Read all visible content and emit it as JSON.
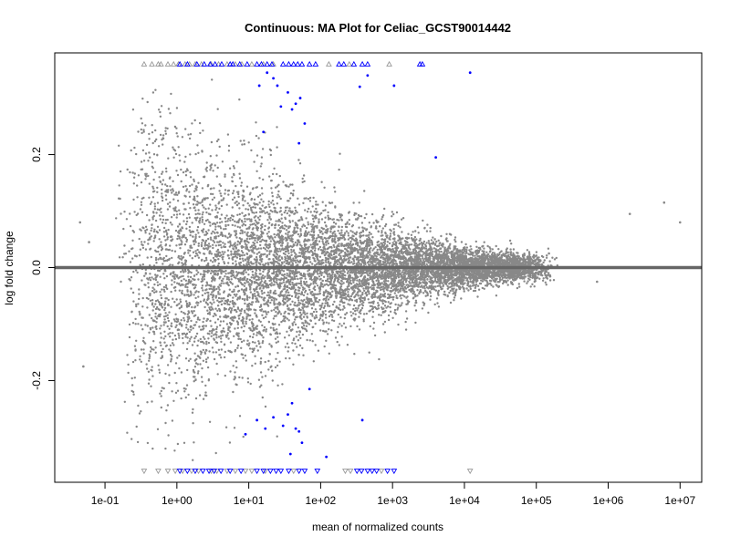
{
  "chart_data": {
    "type": "scatter",
    "title": "Continuous: MA Plot for Celiac_GCST90014442",
    "xlabel": "mean of normalized counts",
    "ylabel": "log fold change",
    "x_scale": "log10",
    "xlim": [
      0.02,
      20000000
    ],
    "ylim": [
      -0.38,
      0.38
    ],
    "x_ticks": [
      {
        "value": 0.1,
        "label": "1e-01"
      },
      {
        "value": 1,
        "label": "1e+00"
      },
      {
        "value": 10,
        "label": "1e+01"
      },
      {
        "value": 100,
        "label": "1e+02"
      },
      {
        "value": 1000,
        "label": "1e+03"
      },
      {
        "value": 10000,
        "label": "1e+04"
      },
      {
        "value": 100000,
        "label": "1e+05"
      },
      {
        "value": 1000000,
        "label": "1e+06"
      },
      {
        "value": 10000000,
        "label": "1e+07"
      }
    ],
    "y_ticks": [
      {
        "value": -0.2,
        "label": "-0.2"
      },
      {
        "value": 0.0,
        "label": "0.0"
      },
      {
        "value": 0.2,
        "label": "0.2"
      }
    ],
    "reference_line": {
      "y": 0,
      "color": "#666666"
    },
    "colors": {
      "non_significant": "#888888",
      "significant": "#0000ff",
      "clipped_nonsig": "#999999"
    },
    "grid": false,
    "legend": "none",
    "significant_points": [
      {
        "x": 14,
        "y": 0.322
      },
      {
        "x": 18,
        "y": 0.345
      },
      {
        "x": 22,
        "y": 0.335
      },
      {
        "x": 25,
        "y": 0.322
      },
      {
        "x": 35,
        "y": 0.31
      },
      {
        "x": 40,
        "y": 0.28
      },
      {
        "x": 45,
        "y": 0.29
      },
      {
        "x": 52,
        "y": 0.3
      },
      {
        "x": 60,
        "y": 0.255
      },
      {
        "x": 28,
        "y": 0.285
      },
      {
        "x": 50,
        "y": 0.22
      },
      {
        "x": 16,
        "y": 0.24
      },
      {
        "x": 350,
        "y": 0.32
      },
      {
        "x": 450,
        "y": 0.34
      },
      {
        "x": 1050,
        "y": 0.322
      },
      {
        "x": 4000,
        "y": 0.195
      },
      {
        "x": 12000,
        "y": 0.345
      },
      {
        "x": 13,
        "y": -0.27
      },
      {
        "x": 17,
        "y": -0.285
      },
      {
        "x": 22,
        "y": -0.265
      },
      {
        "x": 30,
        "y": -0.28
      },
      {
        "x": 35,
        "y": -0.26
      },
      {
        "x": 40,
        "y": -0.24
      },
      {
        "x": 45,
        "y": -0.285
      },
      {
        "x": 50,
        "y": -0.29
      },
      {
        "x": 55,
        "y": -0.31
      },
      {
        "x": 38,
        "y": -0.33
      },
      {
        "x": 70,
        "y": -0.215
      },
      {
        "x": 9,
        "y": -0.295
      },
      {
        "x": 120,
        "y": -0.335
      },
      {
        "x": 380,
        "y": -0.27
      }
    ],
    "clipped_top": {
      "y": 0.36,
      "nonsig_x": [
        0.35,
        0.45,
        0.55,
        0.6,
        0.75,
        0.9,
        1.05,
        1.3,
        1.5,
        1.8,
        2.2,
        3.0,
        3.8,
        5.0,
        6.5,
        8.0,
        11,
        16,
        22,
        130,
        250,
        900
      ],
      "sig_x": [
        1.1,
        1.4,
        1.9,
        2.4,
        2.9,
        3.4,
        4.2,
        5.5,
        6.0,
        7.5,
        9.5,
        13,
        15,
        18,
        21,
        30,
        36,
        42,
        48,
        55,
        70,
        85,
        180,
        210,
        290,
        380,
        450,
        2400,
        2600
      ]
    },
    "clipped_bottom": {
      "y": -0.36,
      "nonsig_x": [
        0.35,
        0.55,
        0.75,
        0.95,
        1.2,
        1.6,
        2.0,
        3.0,
        3.6,
        5.0,
        6.5,
        9.0,
        11,
        17,
        42,
        220,
        260,
        700,
        12000
      ],
      "sig_x": [
        1.1,
        1.4,
        1.8,
        2.3,
        2.8,
        3.3,
        4.1,
        5.5,
        7.8,
        13,
        16,
        20,
        24,
        28,
        36,
        50,
        60,
        90,
        320,
        370,
        450,
        520,
        600,
        850,
        1050
      ]
    },
    "background_distribution": {
      "description_free": true,
      "outlier_points": [
        {
          "x": 0.045,
          "y": 0.08
        },
        {
          "x": 0.05,
          "y": -0.175
        },
        {
          "x": 0.06,
          "y": 0.045
        },
        {
          "x": 6000000,
          "y": 0.115
        },
        {
          "x": 2000000,
          "y": 0.095
        },
        {
          "x": 10000000,
          "y": 0.08
        },
        {
          "x": 700000,
          "y": -0.025
        },
        {
          "x": 150000,
          "y": 0.025
        }
      ]
    }
  }
}
